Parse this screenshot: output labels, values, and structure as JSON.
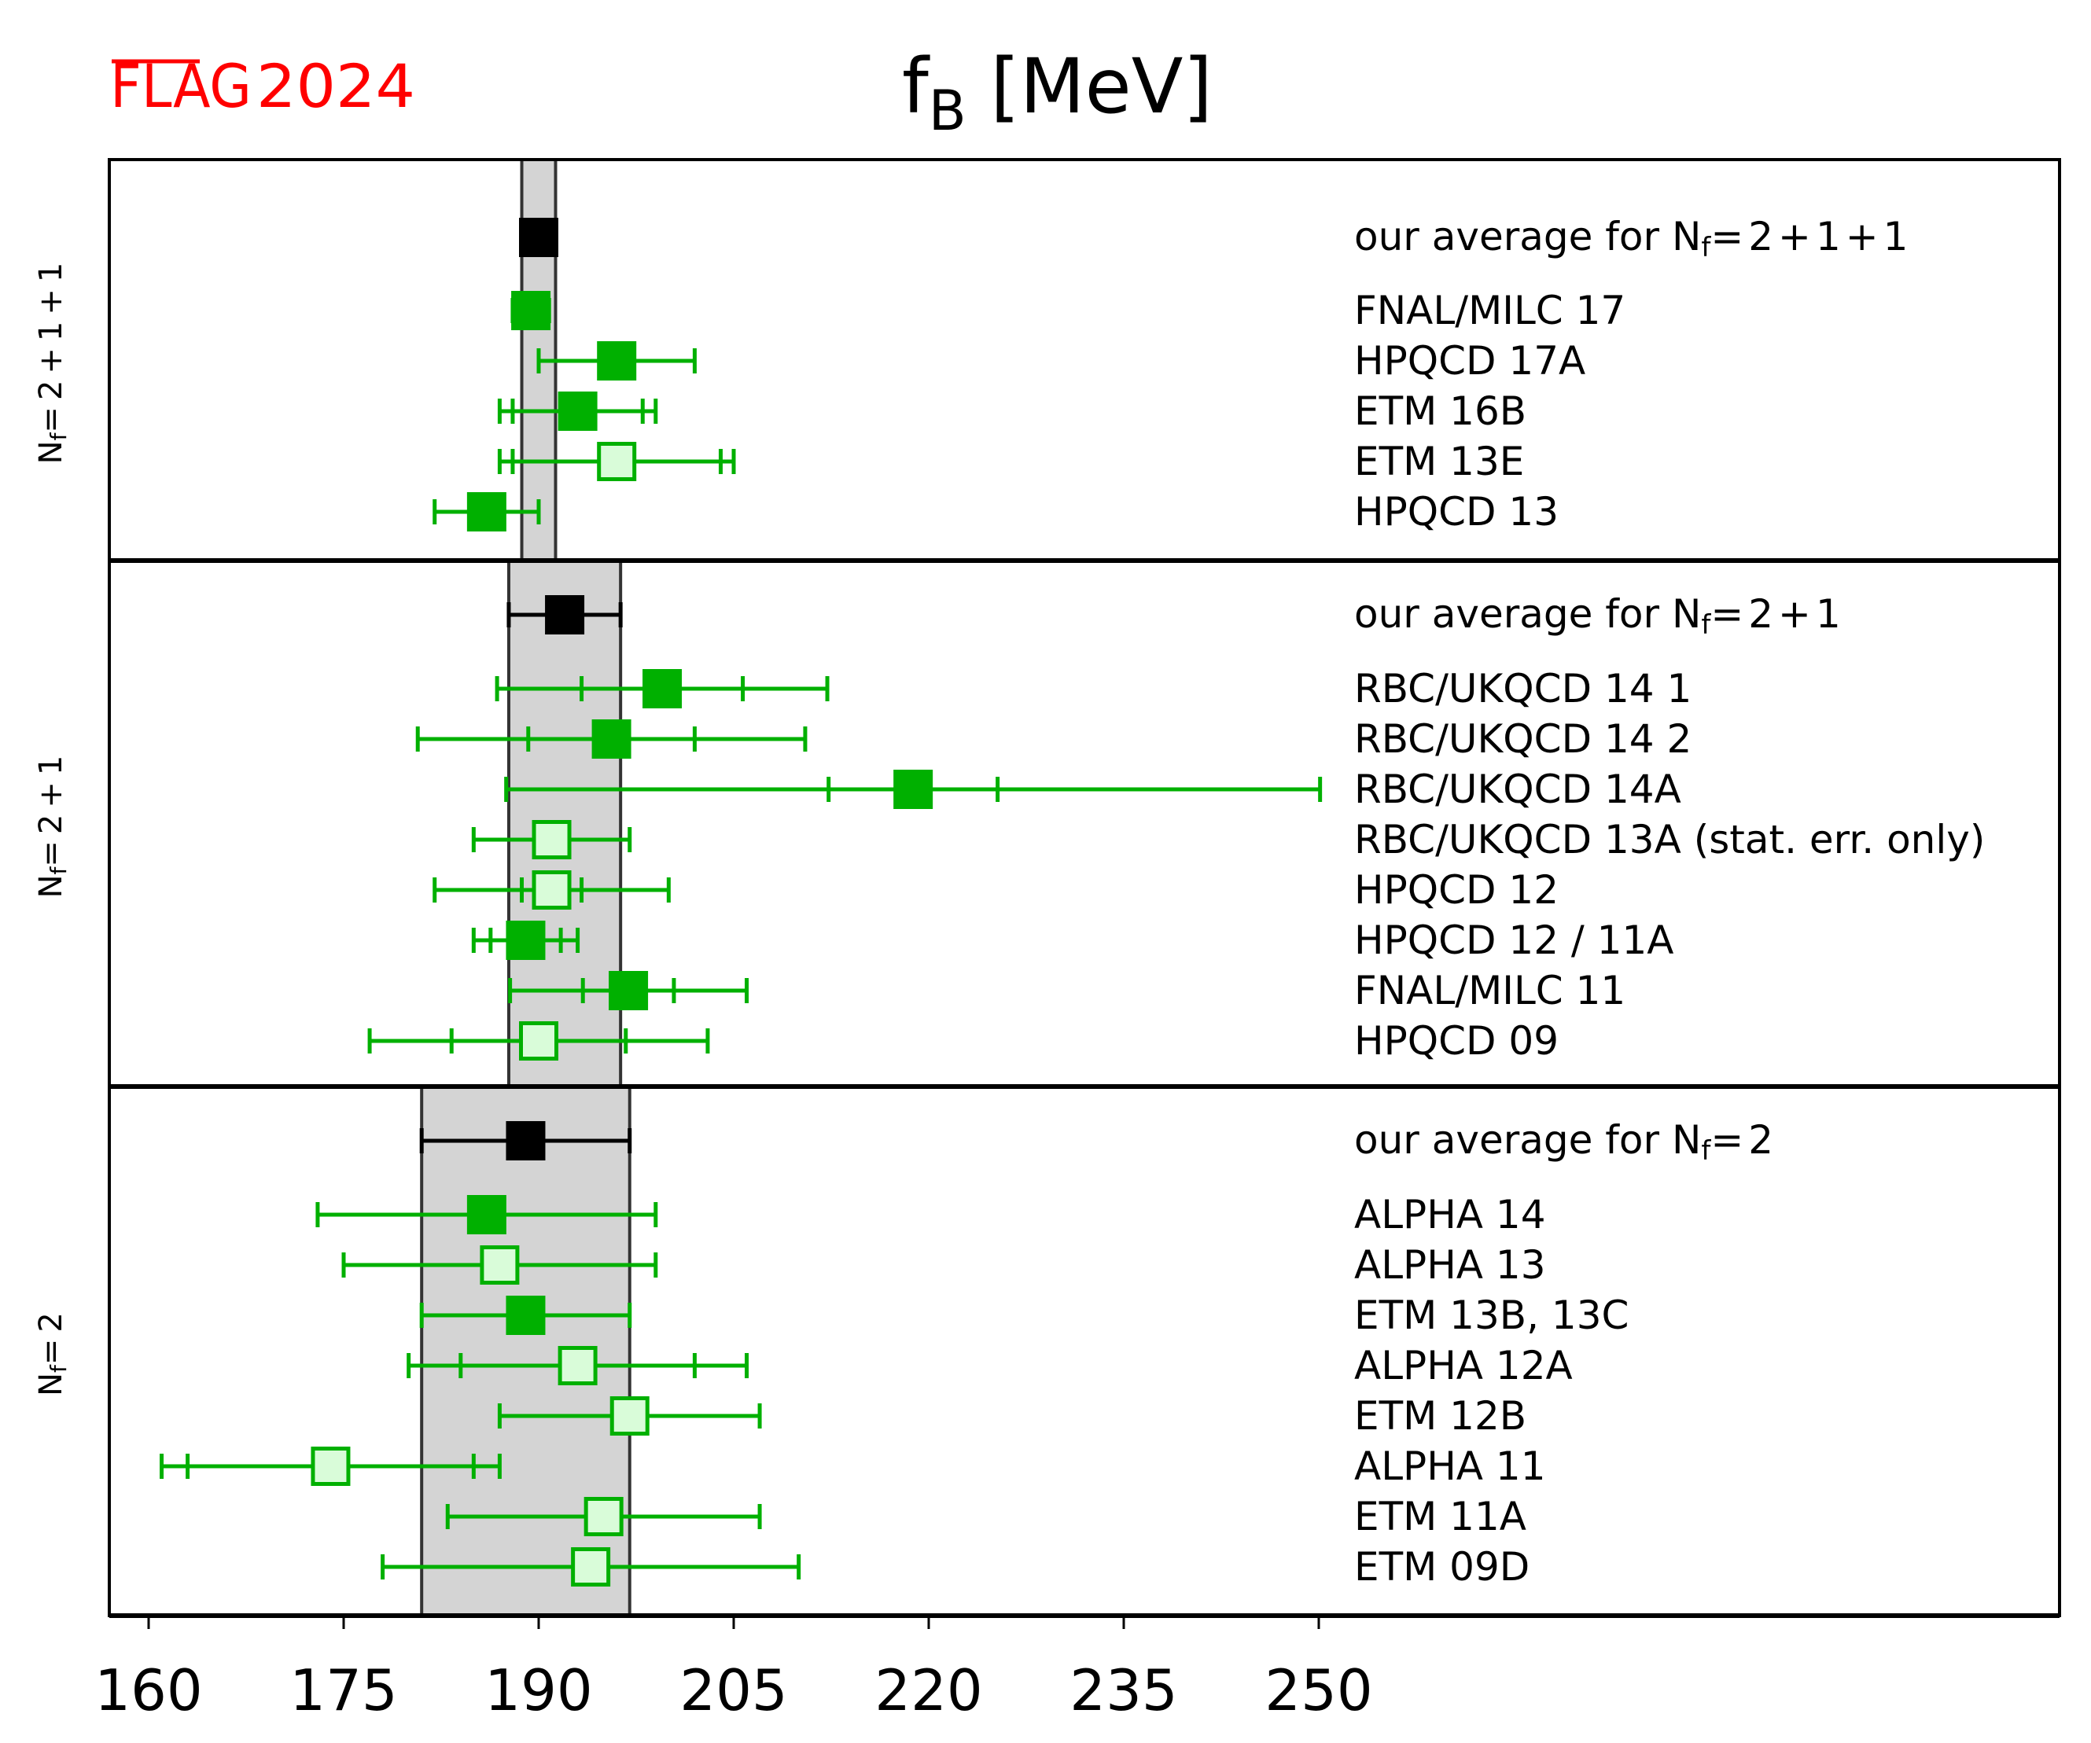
{
  "logo": {
    "text_flag": "FLAG",
    "text_year": "2024",
    "color": "#ff0000"
  },
  "colors": {
    "result": "#00b000",
    "result_open_fill": "#d9fcd9",
    "average": "#000000",
    "band_fill": "#d4d4d4",
    "band_edge": "#333333"
  },
  "chart_data": {
    "type": "forest",
    "title": "f_B [MeV]",
    "title_main": "f",
    "title_sub": "B",
    "title_unit": " [MeV]",
    "xlabel": "",
    "xlim": [
      158,
      258
    ],
    "xticks": [
      160,
      175,
      190,
      205,
      220,
      235,
      250
    ],
    "xtick_labels": [
      "160",
      "175",
      "190",
      "205",
      "220",
      "235",
      "250"
    ],
    "grid": false,
    "legend": "none",
    "groups": [
      {
        "name": "Nf=2+1+1",
        "label_main": "N",
        "label_sub": "f",
        "label_rest": "=2+1+1",
        "average": {
          "label": "our average for Nf=2+1+1",
          "label_prefix": "our average for N",
          "label_sub": "f",
          "label_suffix": "=2+1+1",
          "value": 190.0,
          "err": 1.3
        },
        "results": [
          {
            "label": "FNAL/MILC 17",
            "value": 189.4,
            "stat": null,
            "err": 1.4,
            "filled": true
          },
          {
            "label": "HPQCD 17A",
            "value": 196.0,
            "stat": null,
            "err": 6.0,
            "filled": true
          },
          {
            "label": "ETM 16B",
            "value": 193.0,
            "stat": 5.0,
            "err": 6.0,
            "filled": true
          },
          {
            "label": "ETM 13E",
            "value": 196.0,
            "stat": 8.0,
            "err": 9.0,
            "filled": false
          },
          {
            "label": "HPQCD 13",
            "value": 186.0,
            "stat": null,
            "err": 4.0,
            "filled": true
          }
        ]
      },
      {
        "name": "Nf=2+1",
        "label_main": "N",
        "label_sub": "f",
        "label_rest": "=2+1",
        "average": {
          "label": "our average for Nf=2+1",
          "label_prefix": "our average for N",
          "label_sub": "f",
          "label_suffix": "=2+1",
          "value": 192.0,
          "err": 4.3
        },
        "results": [
          {
            "label": "RBC/UKQCD 14 1",
            "value": 199.5,
            "stat": 6.2,
            "err": 12.7,
            "filled": true
          },
          {
            "label": "RBC/UKQCD 14 2",
            "value": 195.6,
            "stat": 6.4,
            "err": 14.9,
            "filled": true
          },
          {
            "label": "RBC/UKQCD 14A",
            "value": 218.8,
            "stat": 6.5,
            "err": 31.3,
            "filled": true
          },
          {
            "label": "RBC/UKQCD 13A (stat. err. only)",
            "value": 191.0,
            "stat": null,
            "err": 6.0,
            "filled": false
          },
          {
            "label": "HPQCD 12",
            "value": 191.0,
            "stat": 2.3,
            "err": 9.0,
            "filled": false
          },
          {
            "label": "HPQCD 12 / 11A",
            "value": 189.0,
            "stat": 2.7,
            "err": 4.0,
            "filled": true
          },
          {
            "label": "FNAL/MILC 11",
            "value": 196.9,
            "stat": 3.5,
            "err": 9.1,
            "filled": true
          },
          {
            "label": "HPQCD 09",
            "value": 190.0,
            "stat": 6.7,
            "err": 13.0,
            "filled": false
          }
        ]
      },
      {
        "name": "Nf=2",
        "label_main": "N",
        "label_sub": "f",
        "label_rest": "=2",
        "average": {
          "label": "our average for Nf=2",
          "label_prefix": "our average for N",
          "label_sub": "f",
          "label_suffix": "=2",
          "value": 189.0,
          "err": 8.0
        },
        "results": [
          {
            "label": "ALPHA 14",
            "value": 186.0,
            "stat": null,
            "err": 13.0,
            "filled": true
          },
          {
            "label": "ALPHA 13",
            "value": 187.0,
            "stat": null,
            "err": 12.0,
            "filled": false
          },
          {
            "label": "ETM 13B, 13C",
            "value": 189.0,
            "stat": null,
            "err": 8.0,
            "filled": true
          },
          {
            "label": "ALPHA 12A",
            "value": 193.0,
            "stat": 9.0,
            "err": 13.0,
            "filled": false
          },
          {
            "label": "ETM 12B",
            "value": 197.0,
            "stat": null,
            "err": 10.0,
            "filled": false
          },
          {
            "label": "ALPHA 11",
            "value": 174.0,
            "stat": 11.0,
            "err": 13.0,
            "filled": false
          },
          {
            "label": "ETM 11A",
            "value": 195.0,
            "stat": null,
            "err": 12.0,
            "filled": false
          },
          {
            "label": "ETM 09D",
            "value": 194.0,
            "stat": null,
            "err": 16.0,
            "filled": false
          }
        ]
      }
    ]
  }
}
